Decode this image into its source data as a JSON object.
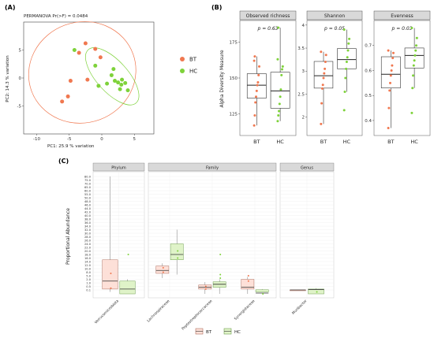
{
  "panels": {
    "A": "(A)",
    "B": "(B)",
    "C": "(C)"
  },
  "colors": {
    "bt": "#f07850",
    "hc": "#7ed23a",
    "bt_fill": "#fde0d8",
    "hc_fill": "#dff3c8",
    "strip": "#d9d9d9",
    "panel_bg": "#ebebeb"
  },
  "chart_data": [
    {
      "type": "scatter",
      "annotation": "PERMANOVA Pr(>F) = 0.0484",
      "xlabel": "PC1:  25.9 % variation",
      "ylabel": "PC2:  14.3 % variation",
      "xlim": [
        -12,
        8
      ],
      "ylim": [
        -10,
        10
      ],
      "xticks": [
        "-10",
        "-5",
        "0",
        "5"
      ],
      "xtick_values": [
        -10,
        -5,
        0,
        5
      ],
      "yticks": [
        "-5",
        "0",
        "5"
      ],
      "ytick_values": [
        -5,
        0,
        5
      ],
      "legend": [
        "BT",
        "HC"
      ],
      "legend_position": "right",
      "series": [
        {
          "name": "BT",
          "points": [
            [
              -3.5,
              4.5
            ],
            [
              -2.5,
              6.2
            ],
            [
              -1.0,
              5.2
            ],
            [
              -0.2,
              3.7
            ],
            [
              -4.8,
              -0.5
            ],
            [
              -6.1,
              -4.2
            ],
            [
              -5.2,
              -3.3
            ],
            [
              -2.2,
              -0.3
            ]
          ]
        },
        {
          "name": "HC",
          "points": [
            [
              -4.2,
              5.0
            ],
            [
              -1.0,
              2.2
            ],
            [
              1.5,
              0.5
            ],
            [
              1.8,
              1.6
            ],
            [
              2.0,
              -0.5
            ],
            [
              2.5,
              -0.8
            ],
            [
              3.0,
              -1.2
            ],
            [
              3.6,
              -0.9
            ],
            [
              3.1,
              -0.3
            ],
            [
              0.8,
              -1.0
            ],
            [
              -0.5,
              -1.4
            ],
            [
              2.8,
              -2.0
            ],
            [
              4.0,
              -2.2
            ]
          ]
        }
      ],
      "ellipses": [
        {
          "name": "BT",
          "center": [
            -3.0,
            1.0
          ],
          "rx": 8.3,
          "ry": 9.0,
          "angle": 20
        },
        {
          "name": "HC",
          "center": [
            1.6,
            0.3
          ],
          "rx": 5.5,
          "ry": 2.8,
          "angle": -48
        }
      ]
    },
    {
      "type": "box",
      "ylabel": "Alpha Diversity Measure",
      "xlabel": "",
      "facets": [
        {
          "title": "Observed richness",
          "annotation": "p = 0.63",
          "ylim": [
            110,
            190
          ],
          "yticks": [
            125,
            150,
            175
          ],
          "categories": [
            "BT",
            "HC"
          ],
          "boxes": [
            {
              "name": "BT",
              "min": 117,
              "q1": 136,
              "median": 145,
              "q3": 153,
              "max": 165,
              "points": [
                117,
                124,
                133,
                137,
                141,
                145,
                147,
                152,
                158,
                162,
                165
              ]
            },
            {
              "name": "HC",
              "min": 120,
              "q1": 129,
              "median": 141,
              "q3": 154,
              "max": 185,
              "points": [
                120,
                124,
                127,
                132,
                137,
                142,
                152,
                156,
                158,
                163,
                185
              ]
            }
          ]
        },
        {
          "title": "Shannon",
          "annotation": "p = 0.05",
          "ylim": [
            1.6,
            4.1
          ],
          "yticks": [
            2.0,
            2.5,
            3.0,
            3.5,
            4.0
          ],
          "categories": [
            "BT",
            "HC"
          ],
          "boxes": [
            {
              "name": "BT",
              "min": 1.85,
              "q1": 2.63,
              "median": 2.9,
              "q3": 3.21,
              "max": 3.42,
              "points": [
                1.85,
                2.3,
                2.62,
                2.7,
                2.85,
                2.95,
                3.05,
                3.2,
                3.35,
                3.42
              ]
            },
            {
              "name": "HC",
              "min": 2.55,
              "q1": 3.05,
              "median": 3.25,
              "q3": 3.49,
              "max": 3.9,
              "points": [
                2.15,
                2.55,
                2.85,
                3.05,
                3.2,
                3.3,
                3.45,
                3.6,
                3.7,
                3.9
              ]
            }
          ]
        },
        {
          "title": "Evenness",
          "annotation": "p = 0.03",
          "ylim": [
            0.34,
            0.8
          ],
          "yticks": [
            0.4,
            0.5,
            0.6,
            0.7
          ],
          "categories": [
            "BT",
            "HC"
          ],
          "boxes": [
            {
              "name": "BT",
              "min": 0.37,
              "q1": 0.53,
              "median": 0.585,
              "q3": 0.655,
              "max": 0.68,
              "points": [
                0.37,
                0.45,
                0.52,
                0.55,
                0.58,
                0.6,
                0.62,
                0.65,
                0.67,
                0.68
              ]
            },
            {
              "name": "HC",
              "min": 0.53,
              "q1": 0.61,
              "median": 0.66,
              "q3": 0.69,
              "max": 0.77,
              "points": [
                0.43,
                0.53,
                0.58,
                0.62,
                0.64,
                0.66,
                0.68,
                0.7,
                0.73,
                0.77
              ]
            }
          ]
        }
      ]
    },
    {
      "type": "box",
      "ylabel": "Proportional Abundance",
      "yticks": [
        "0.1",
        "0.5",
        "1.0",
        "2.0",
        "5.0",
        "8.0",
        "10.0",
        "12.0",
        "14.0",
        "16.0",
        "18.0",
        "20.0",
        "22.0",
        "24.0",
        "26.0",
        "28.0",
        "30.0",
        "32.0",
        "34.0",
        "36.0",
        "38.0",
        "40.0",
        "42.0",
        "44.0",
        "46.0",
        "48.0",
        "50.0",
        "55.0",
        "60.0",
        "65.0",
        "70.0",
        "75.0",
        "80.0"
      ],
      "ytick_values": [
        0.1,
        0.5,
        1,
        2,
        5,
        8,
        10,
        12,
        14,
        16,
        18,
        20,
        22,
        24,
        26,
        28,
        30,
        32,
        34,
        36,
        38,
        40,
        42,
        44,
        46,
        48,
        50,
        55,
        60,
        65,
        70,
        75,
        80
      ],
      "ylim": [
        0,
        80
      ],
      "legend": [
        "BT",
        "HC"
      ],
      "legend_position": "bottom",
      "facets": [
        {
          "title": "Phylum",
          "categories": [
            "Verrucomicrobiota"
          ],
          "groups": [
            {
              "category": "Verrucomicrobiota",
              "boxes": [
                {
                  "name": "BT",
                  "min": 0.05,
                  "q1": 0.2,
                  "median": 1.5,
                  "q3": 15.0,
                  "max": 80.0,
                  "points": [
                    0.3,
                    7.0
                  ]
                },
                {
                  "name": "HC",
                  "min": 0.05,
                  "q1": 0.1,
                  "median": 0.2,
                  "q3": 1.5,
                  "max": 2.0,
                  "points": [
                    18.0
                  ]
                }
              ]
            }
          ]
        },
        {
          "title": "Family",
          "categories": [
            "Lachnospiraceae",
            "Peptostreptococcaceae",
            "Synergistaceae"
          ],
          "groups": [
            {
              "category": "Lachnospiraceae",
              "boxes": [
                {
                  "name": "BT",
                  "min": 3.0,
                  "q1": 7.0,
                  "median": 9.0,
                  "q3": 11.5,
                  "max": 13.0,
                  "points": [
                    8.0,
                    10.5
                  ]
                },
                {
                  "name": "HC",
                  "min": 6.0,
                  "q1": 15.0,
                  "median": 18.0,
                  "q3": 24.0,
                  "max": 32.0,
                  "points": [
                    16.0,
                    20.0
                  ]
                }
              ]
            },
            {
              "category": "Peptostreptococcaceae",
              "boxes": [
                {
                  "name": "BT",
                  "min": 0.1,
                  "q1": 0.2,
                  "median": 0.4,
                  "q3": 0.7,
                  "max": 1.2,
                  "points": [
                    0.2,
                    0.5
                  ]
                },
                {
                  "name": "HC",
                  "min": 0.1,
                  "q1": 0.4,
                  "median": 0.8,
                  "q3": 1.3,
                  "max": 2.0,
                  "points": [
                    18.0,
                    6.0,
                    3.0
                  ]
                }
              ]
            },
            {
              "category": "Synergistaceae",
              "boxes": [
                {
                  "name": "BT",
                  "min": 0.1,
                  "q1": 0.2,
                  "median": 0.4,
                  "q3": 2.0,
                  "max": 4.0,
                  "points": [
                    5.0,
                    1.5
                  ]
                },
                {
                  "name": "HC",
                  "min": 0.02,
                  "q1": 0.05,
                  "median": 0.08,
                  "q3": 0.12,
                  "max": 0.2,
                  "points": [
                    0.1
                  ]
                }
              ]
            }
          ]
        },
        {
          "title": "Genus",
          "categories": [
            "Muribacter"
          ],
          "groups": [
            {
              "category": "Muribacter",
              "boxes": [
                {
                  "name": "BT",
                  "min": 0.0,
                  "q1": 0.0,
                  "median": 0.0,
                  "q3": 0.0,
                  "max": 0.0,
                  "points": []
                },
                {
                  "name": "HC",
                  "min": 0.05,
                  "q1": 0.1,
                  "median": 0.15,
                  "q3": 0.2,
                  "max": 0.3,
                  "points": [
                    0.05
                  ]
                }
              ]
            }
          ]
        }
      ]
    }
  ]
}
